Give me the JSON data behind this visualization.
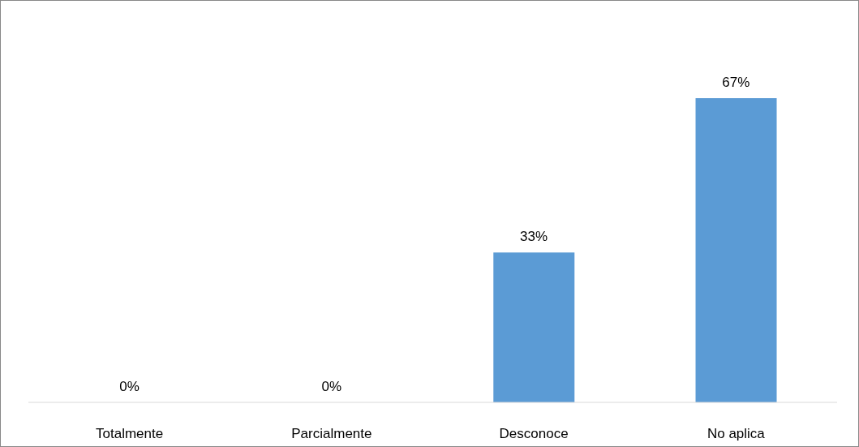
{
  "chart_data": {
    "type": "bar",
    "categories": [
      "Totalmente",
      "Parcialmente",
      "Desconoce",
      "No aplica"
    ],
    "values": [
      0,
      0,
      33,
      67
    ],
    "color": "#5b9bd5",
    "value_labels": [
      "0%",
      "0%",
      "33%",
      "67%"
    ],
    "grid": false,
    "legend": false
  }
}
